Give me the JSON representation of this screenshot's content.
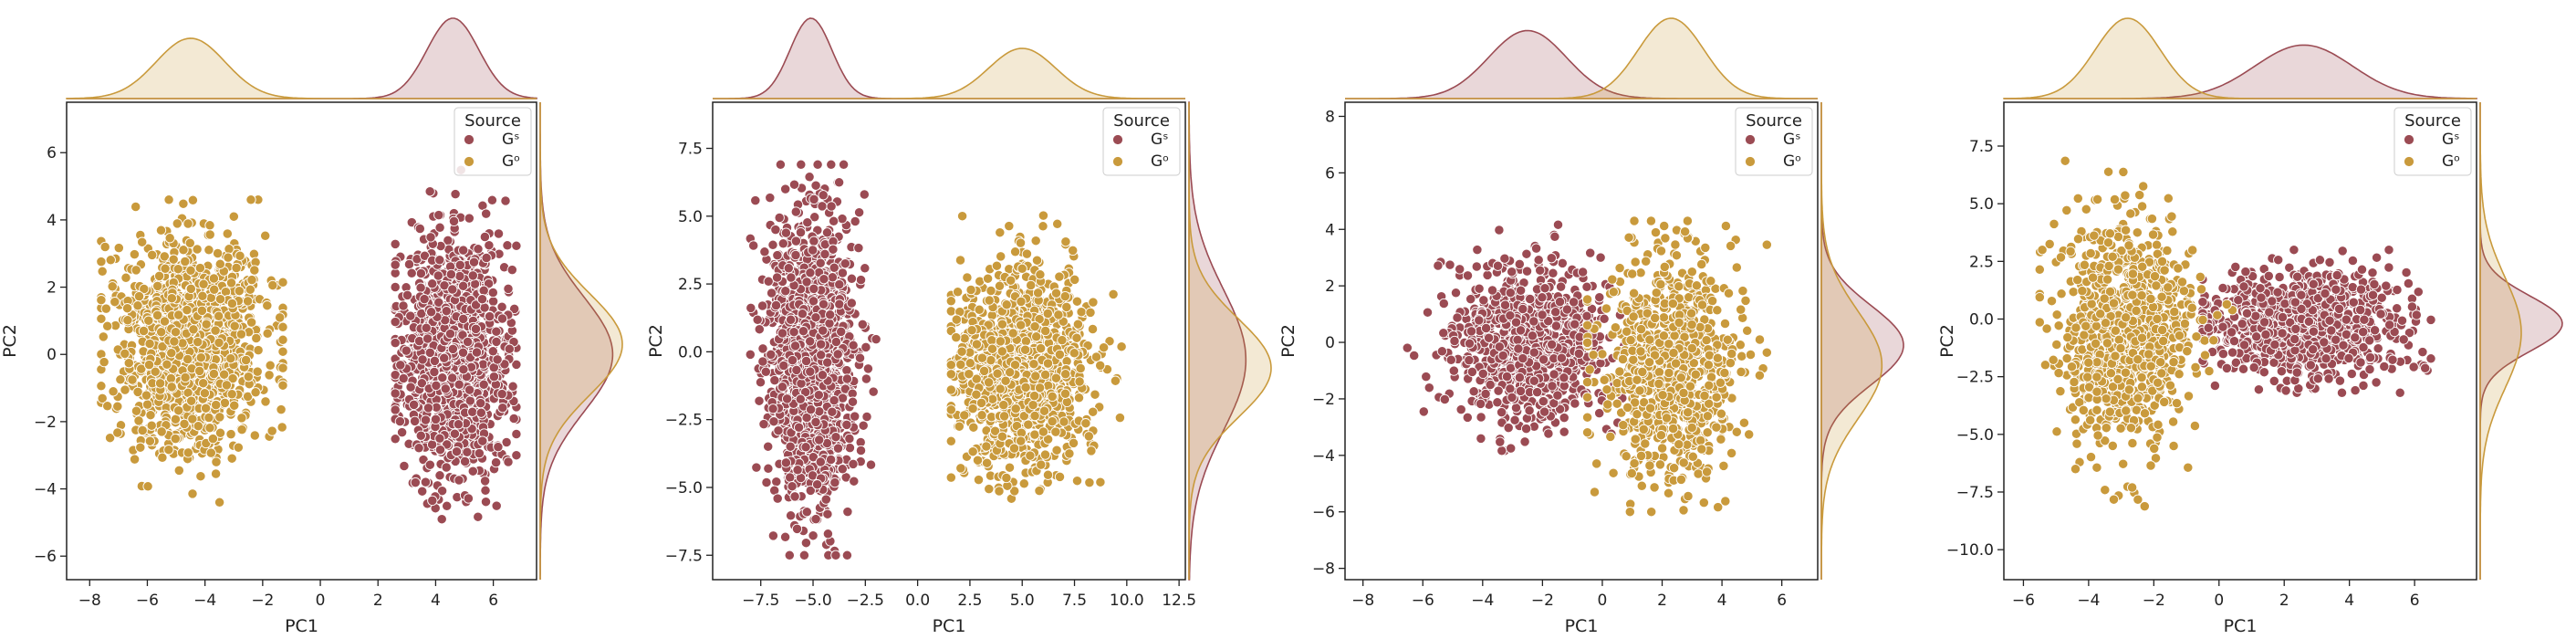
{
  "legend": {
    "title": "Source",
    "labels": [
      "Gˢ",
      "Gᵒ"
    ]
  },
  "colors": {
    "gs": "#9b4b53",
    "go": "#c99a3c",
    "gs_fill": "#e3cdd0",
    "go_fill": "#f1e3c3"
  },
  "chart_data": [
    {
      "type": "scatter",
      "xlabel": "PC1",
      "ylabel": "PC2",
      "xlim": [
        -8.8,
        7.5
      ],
      "ylim": [
        -6.7,
        7.5
      ],
      "xticks": [
        -8,
        -6,
        -4,
        -2,
        0,
        2,
        4,
        6
      ],
      "yticks": [
        -6,
        -4,
        -2,
        0,
        2,
        4,
        6
      ],
      "legend_location": "top-right",
      "marginals": "kde",
      "series": [
        {
          "name": "Gˢ",
          "n_points": 1400,
          "mean": [
            4.6,
            0.0
          ],
          "std": [
            0.9,
            1.7
          ],
          "spread": [
            [
              2.6,
              6.8
            ],
            [
              -4.9,
              5.5
            ]
          ]
        },
        {
          "name": "Gᵒ",
          "n_points": 1400,
          "mean": [
            -4.5,
            0.3
          ],
          "std": [
            1.2,
            1.5
          ],
          "spread": [
            [
              -7.6,
              -1.3
            ],
            [
              -4.4,
              4.6
            ]
          ]
        }
      ]
    },
    {
      "type": "scatter",
      "xlabel": "PC1",
      "ylabel": "PC2",
      "xlim": [
        -9.8,
        12.8
      ],
      "ylim": [
        -8.4,
        9.2
      ],
      "xticks": [
        -7.5,
        -5.0,
        -2.5,
        0.0,
        2.5,
        5.0,
        7.5,
        10.0,
        12.5
      ],
      "yticks": [
        -7.5,
        -5.0,
        -2.5,
        0.0,
        2.5,
        5.0,
        7.5
      ],
      "legend_location": "top-right",
      "marginals": "kde",
      "series": [
        {
          "name": "Gˢ",
          "n_points": 1400,
          "mean": [
            -5.1,
            -0.3
          ],
          "std": [
            1.0,
            2.6
          ],
          "spread": [
            [
              -8.0,
              -1.6
            ],
            [
              -7.5,
              6.9
            ]
          ]
        },
        {
          "name": "Gᵒ",
          "n_points": 1200,
          "mean": [
            5.0,
            -0.6
          ],
          "std": [
            1.6,
            1.8
          ],
          "spread": [
            [
              1.6,
              11.0
            ],
            [
              -6.3,
              6.2
            ]
          ]
        }
      ]
    },
    {
      "type": "scatter",
      "xlabel": "PC1",
      "ylabel": "PC2",
      "xlim": [
        -8.6,
        7.2
      ],
      "ylim": [
        -8.4,
        8.5
      ],
      "xticks": [
        -8,
        -6,
        -4,
        -2,
        0,
        2,
        4,
        6
      ],
      "yticks": [
        -8,
        -6,
        -4,
        -2,
        0,
        2,
        4,
        6,
        8
      ],
      "legend_location": "top-right",
      "marginals": "kde",
      "series": [
        {
          "name": "Gˢ",
          "n_points": 900,
          "mean": [
            -2.5,
            -0.1
          ],
          "std": [
            1.3,
            1.4
          ],
          "spread": [
            [
              -7.0,
              1.5
            ],
            [
              -4.5,
              6.5
            ]
          ]
        },
        {
          "name": "Gᵒ",
          "n_points": 900,
          "mean": [
            2.3,
            -0.8
          ],
          "std": [
            1.1,
            1.9
          ],
          "spread": [
            [
              -0.5,
              5.5
            ],
            [
              -6.0,
              4.3
            ]
          ]
        }
      ]
    },
    {
      "type": "scatter",
      "xlabel": "PC1",
      "ylabel": "PC2",
      "xlim": [
        -6.6,
        7.9
      ],
      "ylim": [
        -11.3,
        9.4
      ],
      "xticks": [
        -6,
        -4,
        -2,
        0,
        2,
        4,
        6
      ],
      "yticks": [
        -10.0,
        -7.5,
        -5.0,
        -2.5,
        0.0,
        2.5,
        5.0,
        7.5
      ],
      "legend_location": "top-right",
      "marginals": "kde",
      "series": [
        {
          "name": "Gˢ",
          "n_points": 900,
          "mean": [
            2.6,
            -0.2
          ],
          "std": [
            1.5,
            1.2
          ],
          "spread": [
            [
              -0.5,
              6.5
            ],
            [
              -3.2,
              3.0
            ]
          ]
        },
        {
          "name": "Gᵒ",
          "n_points": 900,
          "mean": [
            -2.8,
            -0.6
          ],
          "std": [
            1.0,
            2.4
          ],
          "spread": [
            [
              -5.5,
              0.5
            ],
            [
              -9.6,
              6.9
            ]
          ]
        }
      ]
    }
  ]
}
